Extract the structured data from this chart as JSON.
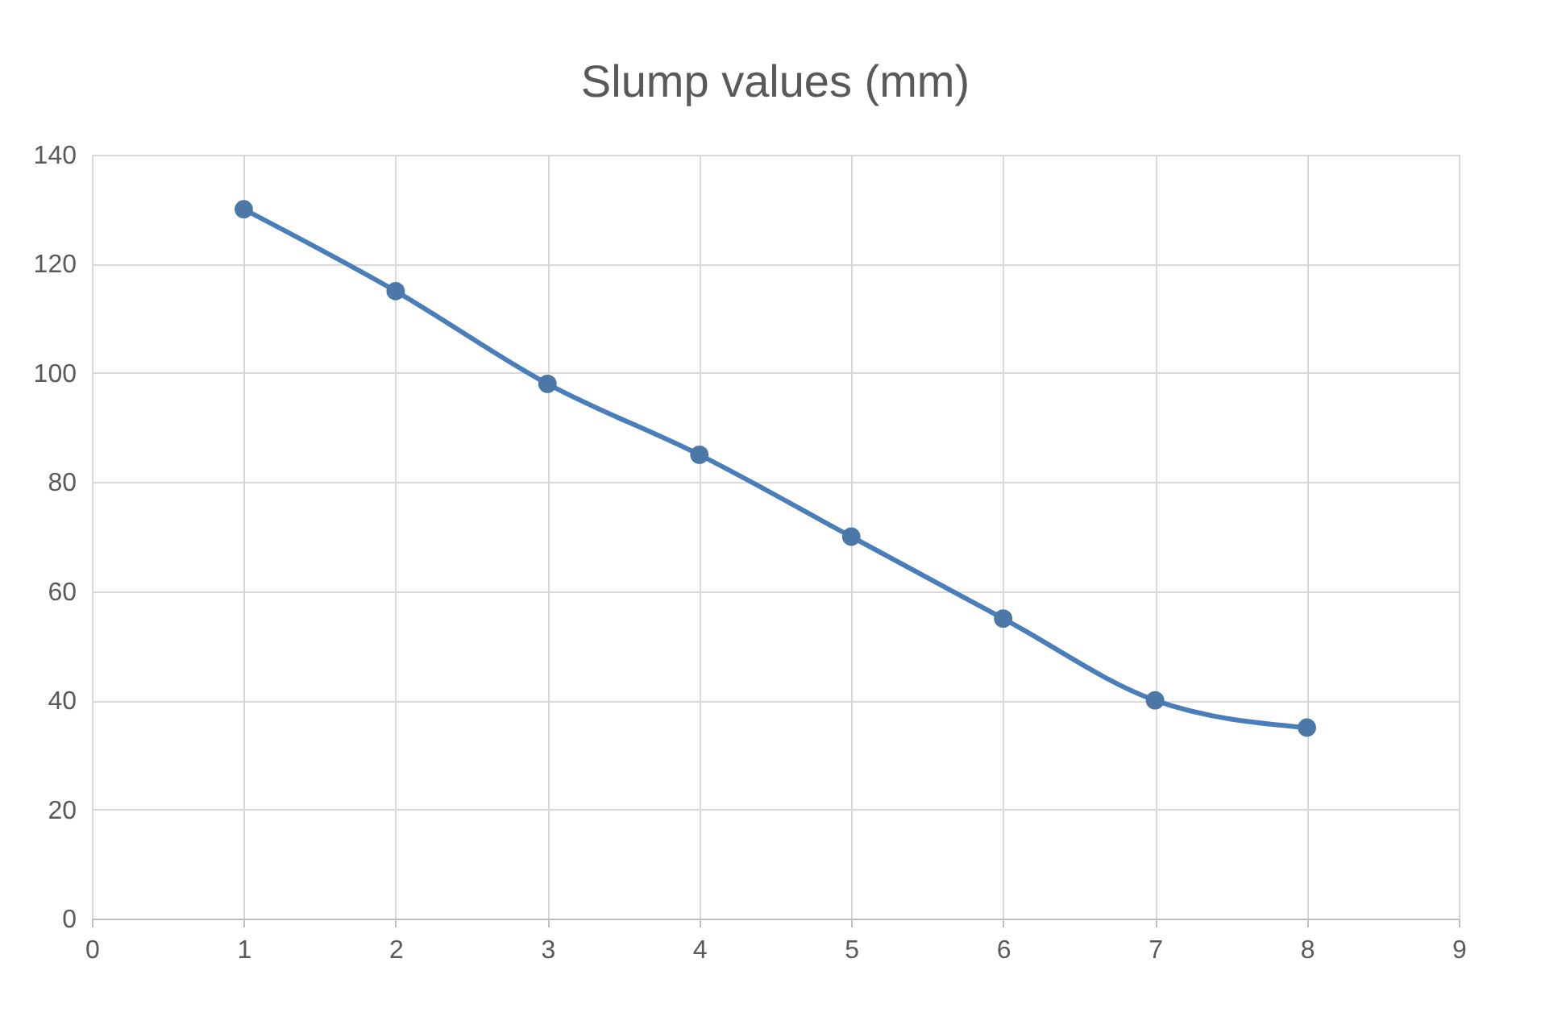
{
  "chart_data": {
    "type": "line",
    "title": "Slump values (mm)",
    "x": [
      1,
      2,
      3,
      4,
      5,
      6,
      7,
      8
    ],
    "series": [
      {
        "color": "#4a7ebb",
        "values": [
          130,
          115,
          98,
          85,
          70,
          55,
          40,
          35
        ]
      }
    ],
    "xlim": [
      0,
      9
    ],
    "xticks": [
      0,
      1,
      2,
      3,
      4,
      5,
      6,
      7,
      8,
      9
    ],
    "ylim": [
      0,
      140
    ],
    "yticks": [
      0,
      20,
      40,
      60,
      80,
      100,
      120,
      140
    ],
    "grid": true,
    "marker": "circle",
    "line_style": "solid"
  }
}
